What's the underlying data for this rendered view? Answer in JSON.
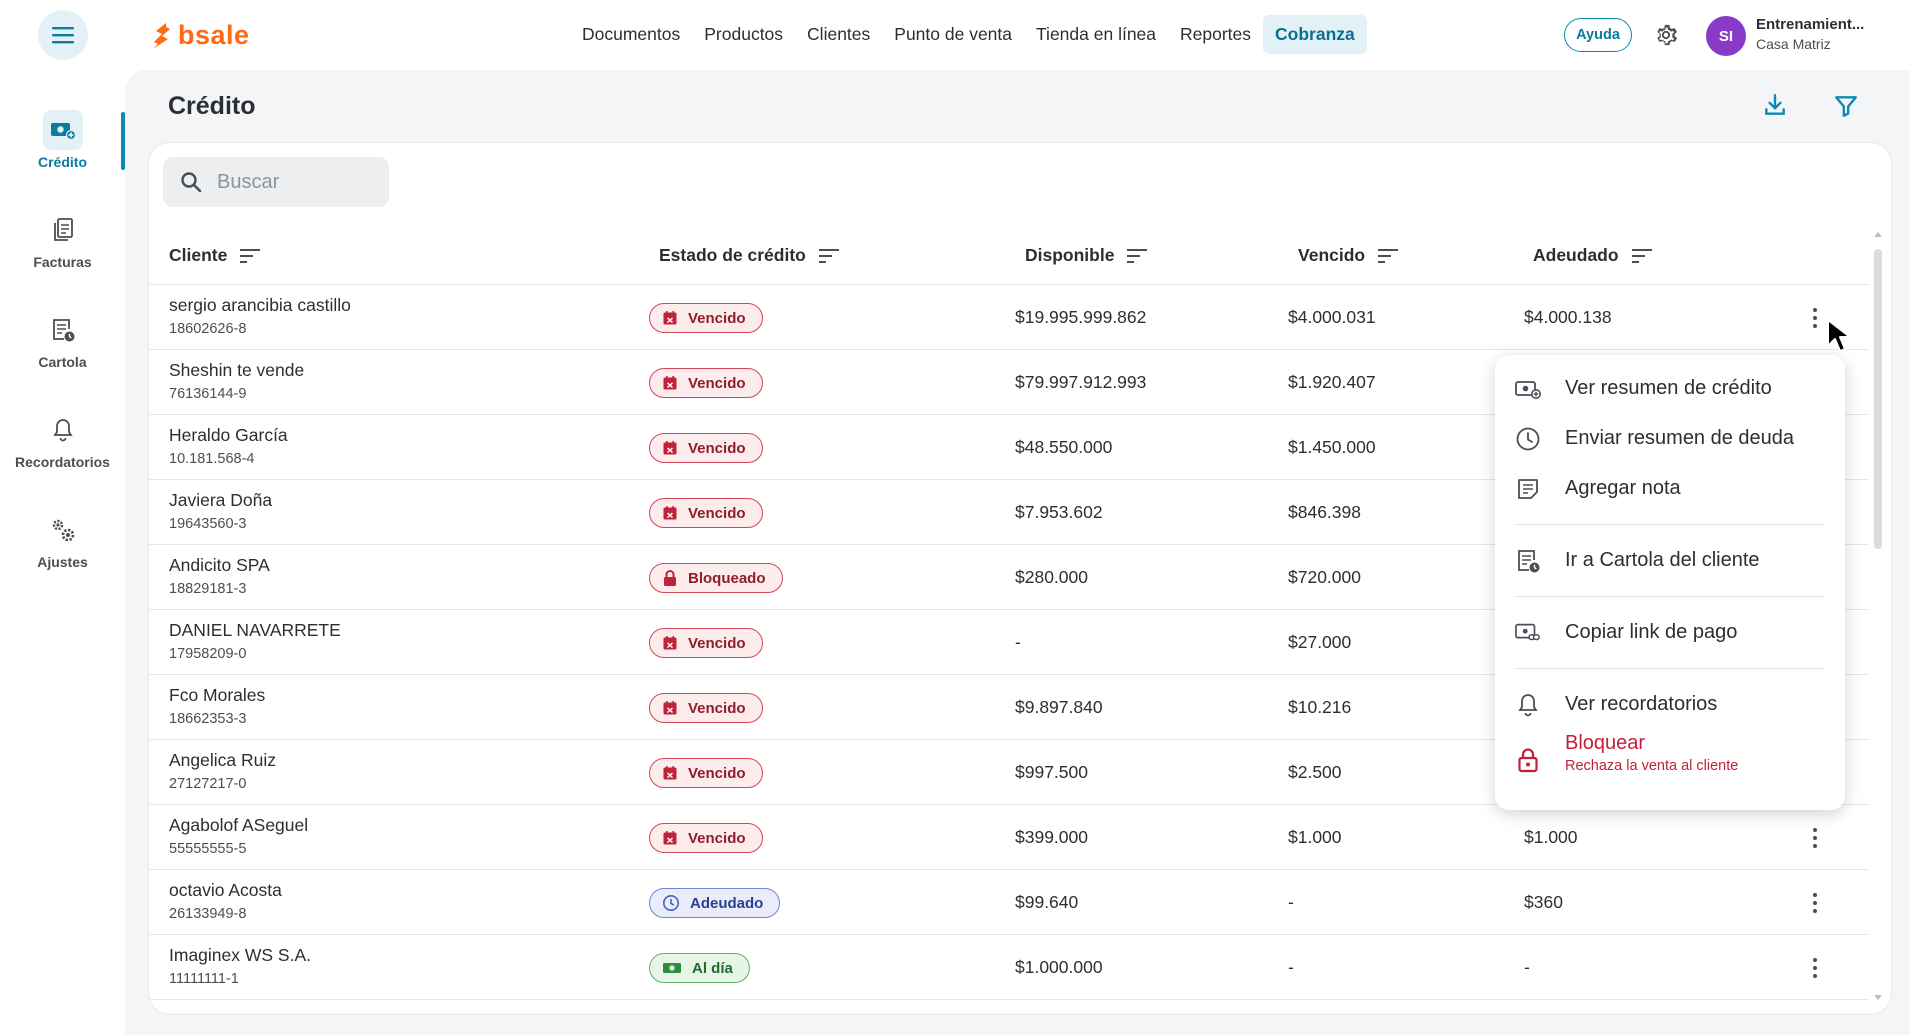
{
  "header": {
    "logo_text": "bsale",
    "nav": [
      "Documentos",
      "Productos",
      "Clientes",
      "Punto de venta",
      "Tienda en línea",
      "Reportes",
      "Cobranza"
    ],
    "active_nav": "Cobranza",
    "help_label": "Ayuda",
    "avatar_initials": "SI",
    "user_name": "Entrenamient...",
    "branch": "Casa Matriz"
  },
  "sidebar": {
    "items": [
      {
        "label": "Crédito",
        "icon": "credit-icon",
        "active": true
      },
      {
        "label": "Facturas",
        "icon": "invoices-icon",
        "active": false
      },
      {
        "label": "Cartola",
        "icon": "statement-icon",
        "active": false
      },
      {
        "label": "Recordatorios",
        "icon": "bell-icon",
        "active": false
      },
      {
        "label": "Ajustes",
        "icon": "gears-icon",
        "active": false
      }
    ]
  },
  "page": {
    "title": "Crédito",
    "search_placeholder": "Buscar"
  },
  "table": {
    "columns": [
      "Cliente",
      "Estado de crédito",
      "Disponible",
      "Vencido",
      "Adeudado"
    ],
    "rows": [
      {
        "name": "sergio arancibia castillo",
        "rut": "18602626-8",
        "status": "Vencido",
        "status_kind": "vencido",
        "available": "$19.995.999.862",
        "overdue": "$4.000.031",
        "owed": "$4.000.138"
      },
      {
        "name": "Sheshin te vende",
        "rut": "76136144-9",
        "status": "Vencido",
        "status_kind": "vencido",
        "available": "$79.997.912.993",
        "overdue": "$1.920.407",
        "owed": ""
      },
      {
        "name": "Heraldo García",
        "rut": "10.181.568-4",
        "status": "Vencido",
        "status_kind": "vencido",
        "available": "$48.550.000",
        "overdue": "$1.450.000",
        "owed": ""
      },
      {
        "name": "Javiera Doña",
        "rut": "19643560-3",
        "status": "Vencido",
        "status_kind": "vencido",
        "available": "$7.953.602",
        "overdue": "$846.398",
        "owed": ""
      },
      {
        "name": "Andicito SPA",
        "rut": "18829181-3",
        "status": "Bloqueado",
        "status_kind": "bloqueado",
        "available": "$280.000",
        "overdue": "$720.000",
        "owed": ""
      },
      {
        "name": "DANIEL NAVARRETE",
        "rut": "17958209-0",
        "status": "Vencido",
        "status_kind": "vencido",
        "available": "-",
        "overdue": "$27.000",
        "owed": ""
      },
      {
        "name": "Fco Morales",
        "rut": "18662353-3",
        "status": "Vencido",
        "status_kind": "vencido",
        "available": "$9.897.840",
        "overdue": "$10.216",
        "owed": ""
      },
      {
        "name": "Angelica Ruiz",
        "rut": "27127217-0",
        "status": "Vencido",
        "status_kind": "vencido",
        "available": "$997.500",
        "overdue": "$2.500",
        "owed": ""
      },
      {
        "name": "Agabolof ASeguel",
        "rut": "55555555-5",
        "status": "Vencido",
        "status_kind": "vencido",
        "available": "$399.000",
        "overdue": "$1.000",
        "owed": "$1.000"
      },
      {
        "name": "octavio Acosta",
        "rut": "26133949-8",
        "status": "Adeudado",
        "status_kind": "adeudado",
        "available": "$99.640",
        "overdue": "-",
        "owed": "$360"
      },
      {
        "name": "Imaginex WS S.A.",
        "rut": "11111111-1",
        "status": "Al día",
        "status_kind": "aldia",
        "available": "$1.000.000",
        "overdue": "-",
        "owed": "-"
      }
    ]
  },
  "context_menu": {
    "items": [
      {
        "label": "Ver resumen de crédito",
        "icon": "credit-summary-icon"
      },
      {
        "label": "Enviar resumen de deuda",
        "icon": "clock-icon"
      },
      {
        "label": "Agregar nota",
        "icon": "note-icon"
      },
      {
        "label": "Ir a Cartola del cliente",
        "icon": "statement-icon"
      },
      {
        "label": "Copiar link de pago",
        "icon": "payment-link-icon"
      },
      {
        "label": "Ver recordatorios",
        "icon": "bell-icon"
      },
      {
        "label": "Bloquear",
        "icon": "lock-icon",
        "sublabel": "Rechaza la venta al cliente"
      }
    ]
  },
  "colors": {
    "accent": "#0b8ab3",
    "danger": "#c2213a",
    "logo": "#ff6a13"
  }
}
